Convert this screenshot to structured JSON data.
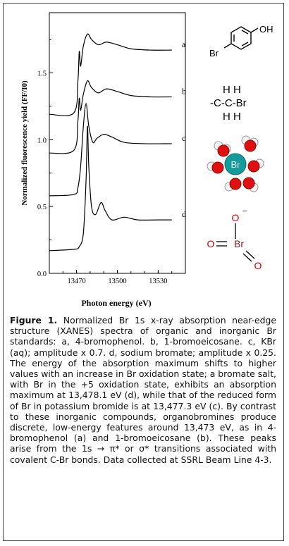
{
  "chart_data": {
    "type": "line",
    "title": "",
    "xlabel": "Photon energy (eV)",
    "ylabel": "Normalized fluorescence yield (FF/I0)",
    "xlim": [
      13450,
      13550
    ],
    "ylim": [
      0.0,
      1.95
    ],
    "x_ticks": [
      "13470",
      "13500",
      "13530"
    ],
    "y_ticks": [
      "0.0",
      "0.5",
      "1.0",
      "1.5"
    ],
    "series": [
      {
        "name": "a",
        "values": [
          [
            13450,
            1.19
          ],
          [
            13468,
            1.2
          ],
          [
            13471,
            1.44
          ],
          [
            13472,
            1.66
          ],
          [
            13473,
            1.55
          ],
          [
            13475,
            1.7
          ],
          [
            13478,
            1.79
          ],
          [
            13481,
            1.75
          ],
          [
            13486,
            1.71
          ],
          [
            13492,
            1.73
          ],
          [
            13500,
            1.71
          ],
          [
            13510,
            1.68
          ],
          [
            13525,
            1.67
          ],
          [
            13540,
            1.67
          ]
        ]
      },
      {
        "name": "b",
        "values": [
          [
            13450,
            0.9
          ],
          [
            13468,
            0.92
          ],
          [
            13471,
            1.14
          ],
          [
            13472,
            1.31
          ],
          [
            13473,
            1.22
          ],
          [
            13475,
            1.34
          ],
          [
            13478,
            1.44
          ],
          [
            13481,
            1.39
          ],
          [
            13486,
            1.35
          ],
          [
            13492,
            1.38
          ],
          [
            13500,
            1.36
          ],
          [
            13510,
            1.33
          ],
          [
            13525,
            1.32
          ],
          [
            13540,
            1.32
          ]
        ]
      },
      {
        "name": "c",
        "values": [
          [
            13450,
            0.58
          ],
          [
            13468,
            0.59
          ],
          [
            13471,
            0.64
          ],
          [
            13473,
            0.8
          ],
          [
            13475,
            1.1
          ],
          [
            13477,
            1.27
          ],
          [
            13479,
            1.1
          ],
          [
            13482,
            0.98
          ],
          [
            13485,
            1.01
          ],
          [
            13490,
            1.04
          ],
          [
            13496,
            1.02
          ],
          [
            13505,
            0.98
          ],
          [
            13520,
            0.97
          ],
          [
            13540,
            0.97
          ]
        ]
      },
      {
        "name": "d",
        "values": [
          [
            13450,
            0.17
          ],
          [
            13468,
            0.18
          ],
          [
            13472,
            0.2
          ],
          [
            13475,
            0.3
          ],
          [
            13477,
            0.7
          ],
          [
            13478,
            1.1
          ],
          [
            13479,
            0.8
          ],
          [
            13481,
            0.5
          ],
          [
            13484,
            0.44
          ],
          [
            13488,
            0.53
          ],
          [
            13491,
            0.47
          ],
          [
            13496,
            0.4
          ],
          [
            13505,
            0.42
          ],
          [
            13515,
            0.4
          ],
          [
            13530,
            0.4
          ],
          [
            13540,
            0.4
          ]
        ]
      }
    ]
  },
  "molecules": {
    "bromophenol": {
      "oh": "OH",
      "br": "Br"
    },
    "bromoethane": {
      "line1": "H H",
      "line2": "-C-C-Br",
      "line3": "H H"
    },
    "hydrated_ion": {
      "center": "Br"
    },
    "bromate": {
      "o_top": "O",
      "charge": "−",
      "o_left": "O",
      "br": "Br",
      "o_right": "O"
    }
  },
  "caption": {
    "label": "Figure 1.",
    "text": "  Normalized Br 1s x-ray absorption near-edge structure (XANES) spectra of organic and inorganic Br standards:  a, 4-bromophenol.  b, 1-bromoeicosane.  c, KBr (aq); amplitude x 0.7.  d, sodium bromate; amplitude x 0.25.  The energy of the absorption maximum shifts to higher values with an increase in Br oxidation state; a bromate salt, with Br in the +5 oxidation state, exhibits an absorption maximum at 13,478.1 eV (d), while that of the reduced form of Br in potassium bromide is at 13,477.3 eV (c).  By contrast to these inorganic compounds, organobromines produce discrete, low-energy features around 13,473 eV, as in 4-bromophenol (a) and 1-bromoeicosane (b).  These peaks arise from the 1s → π* or σ* transitions associated with covalent C-Br bonds.  Data collected at SSRL Beam Line 4-3."
  }
}
